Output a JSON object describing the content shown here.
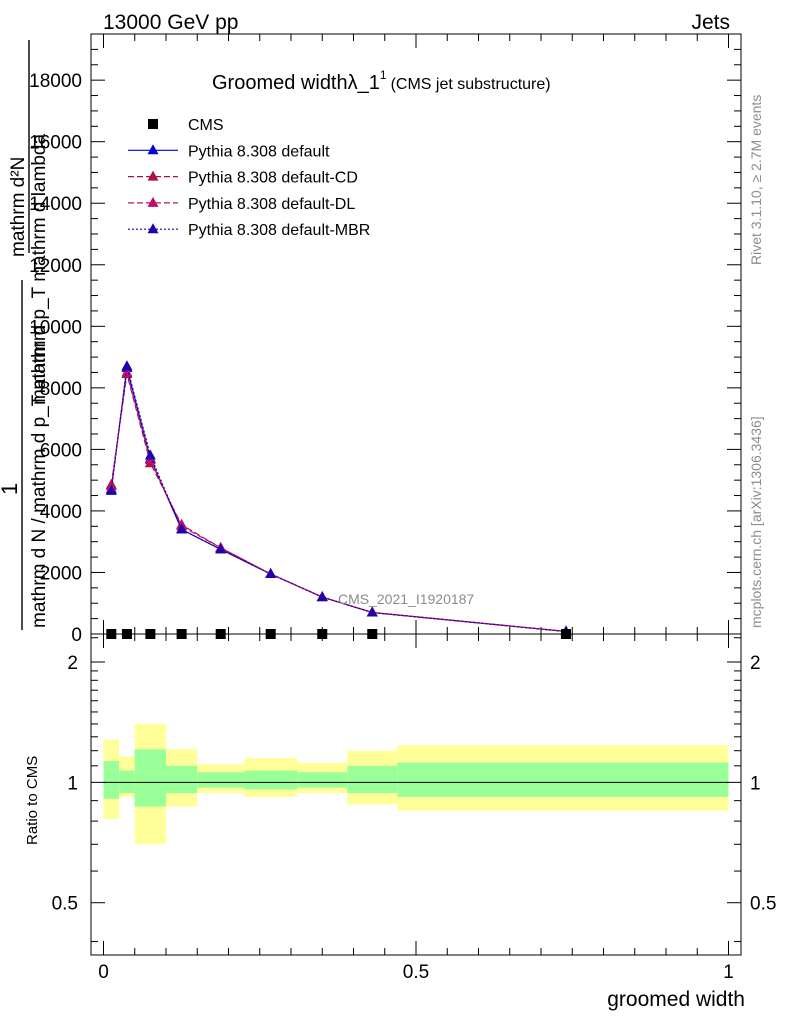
{
  "header": {
    "left": "13000 GeV pp",
    "right": "Jets"
  },
  "plot_title": {
    "main": "Groomed widthλ_1",
    "sup": "1",
    "sub": "(CMS jet substructure)"
  },
  "side_labels": {
    "rivet": "Rivet 3.1.10, ≥ 2.7M events",
    "mcplots": "mcplots.cern.ch [arXiv:1306.3436]"
  },
  "watermark": "CMS_2021_I1920187",
  "ylabel_main": {
    "lines": [
      "mathrm d²N",
      "mathrm d p_T mathrm d lambda",
      "1",
      "mathrm d N / mathrm d p_T mathrm"
    ]
  },
  "colors": {
    "default": "#0000dd",
    "cd": "#aa1144",
    "dl": "#bb1166",
    "mbr": "#2200aa",
    "band_inner": "#99ff99",
    "band_outer": "#ffff99"
  },
  "chart_data": [
    {
      "type": "line",
      "xlabel": "groomed width",
      "ylabel": "",
      "xlim": [
        -0.02,
        1.02
      ],
      "ylim": [
        0,
        19500
      ],
      "yticks": [
        0,
        2000,
        4000,
        6000,
        8000,
        10000,
        12000,
        14000,
        16000,
        18000
      ],
      "ytick_labels": [
        "0",
        "2000",
        "4000",
        "6000",
        "8000",
        "10000",
        "12000",
        "14000",
        "16000",
        "18000"
      ],
      "legend": [
        "CMS",
        "Pythia 8.308 default",
        "Pythia 8.308 default-CD",
        "Pythia 8.308 default-DL",
        "Pythia 8.308 default-MBR"
      ],
      "cms": {
        "name": "CMS",
        "x": [
          0.0125,
          0.0375,
          0.075,
          0.125,
          0.1875,
          0.2675,
          0.35,
          0.43,
          0.74
        ],
        "y": [
          0,
          0,
          0,
          0,
          0,
          0,
          0,
          0,
          0
        ]
      },
      "series": [
        {
          "name": "Pythia 8.308 default",
          "key": "default",
          "dash": "",
          "x": [
            0.0125,
            0.0375,
            0.075,
            0.125,
            0.1875,
            0.2675,
            0.35,
            0.43,
            0.74
          ],
          "y": [
            4700,
            8650,
            5700,
            3400,
            2750,
            1950,
            1200,
            700,
            80
          ]
        },
        {
          "name": "Pythia 8.308 default-CD",
          "key": "cd",
          "dash": "6,3",
          "x": [
            0.0125,
            0.0375,
            0.075,
            0.125,
            0.1875,
            0.2675,
            0.35,
            0.43,
            0.74
          ],
          "y": [
            4850,
            8450,
            5550,
            3550,
            2800,
            1950,
            1200,
            700,
            80
          ]
        },
        {
          "name": "Pythia 8.308 default-DL",
          "key": "dl",
          "dash": "6,3",
          "x": [
            0.0125,
            0.0375,
            0.075,
            0.125,
            0.1875,
            0.2675,
            0.35,
            0.43,
            0.74
          ],
          "y": [
            4800,
            8500,
            5650,
            3500,
            2800,
            1950,
            1200,
            700,
            80
          ]
        },
        {
          "name": "Pythia 8.308 default-MBR",
          "key": "mbr",
          "dash": "2,2",
          "x": [
            0.0125,
            0.0375,
            0.075,
            0.125,
            0.1875,
            0.2675,
            0.35,
            0.43,
            0.74
          ],
          "y": [
            4650,
            8700,
            5800,
            3400,
            2750,
            1950,
            1200,
            700,
            80
          ]
        }
      ]
    },
    {
      "type": "area",
      "xlabel": "groomed width",
      "ylabel": "Ratio to CMS",
      "xlim": [
        -0.02,
        1.02
      ],
      "ylim": [
        0.37,
        2.35
      ],
      "yticks": [
        0.5,
        1,
        2
      ],
      "ytick_labels": [
        "0.5",
        "1",
        "2"
      ],
      "xticks": [
        0,
        0.5,
        1
      ],
      "xtick_labels": [
        "0",
        "0.5",
        "1"
      ],
      "bins": [
        {
          "lo": 0.0,
          "hi": 0.025,
          "in_lo": 0.91,
          "in_hi": 1.13,
          "out_lo": 0.81,
          "out_hi": 1.28
        },
        {
          "lo": 0.025,
          "hi": 0.05,
          "in_lo": 0.94,
          "in_hi": 1.07,
          "out_lo": 0.92,
          "out_hi": 1.16
        },
        {
          "lo": 0.05,
          "hi": 0.1,
          "in_lo": 0.87,
          "in_hi": 1.21,
          "out_lo": 0.7,
          "out_hi": 1.4
        },
        {
          "lo": 0.1,
          "hi": 0.15,
          "in_lo": 0.94,
          "in_hi": 1.1,
          "out_lo": 0.87,
          "out_hi": 1.21
        },
        {
          "lo": 0.15,
          "hi": 0.225,
          "in_lo": 0.97,
          "in_hi": 1.06,
          "out_lo": 0.94,
          "out_hi": 1.11
        },
        {
          "lo": 0.225,
          "hi": 0.31,
          "in_lo": 0.96,
          "in_hi": 1.07,
          "out_lo": 0.92,
          "out_hi": 1.15
        },
        {
          "lo": 0.31,
          "hi": 0.39,
          "in_lo": 0.97,
          "in_hi": 1.06,
          "out_lo": 0.94,
          "out_hi": 1.12
        },
        {
          "lo": 0.39,
          "hi": 0.47,
          "in_lo": 0.94,
          "in_hi": 1.1,
          "out_lo": 0.88,
          "out_hi": 1.2
        },
        {
          "lo": 0.47,
          "hi": 1.0,
          "in_lo": 0.92,
          "in_hi": 1.12,
          "out_lo": 0.85,
          "out_hi": 1.24
        }
      ],
      "reference": 1
    }
  ]
}
